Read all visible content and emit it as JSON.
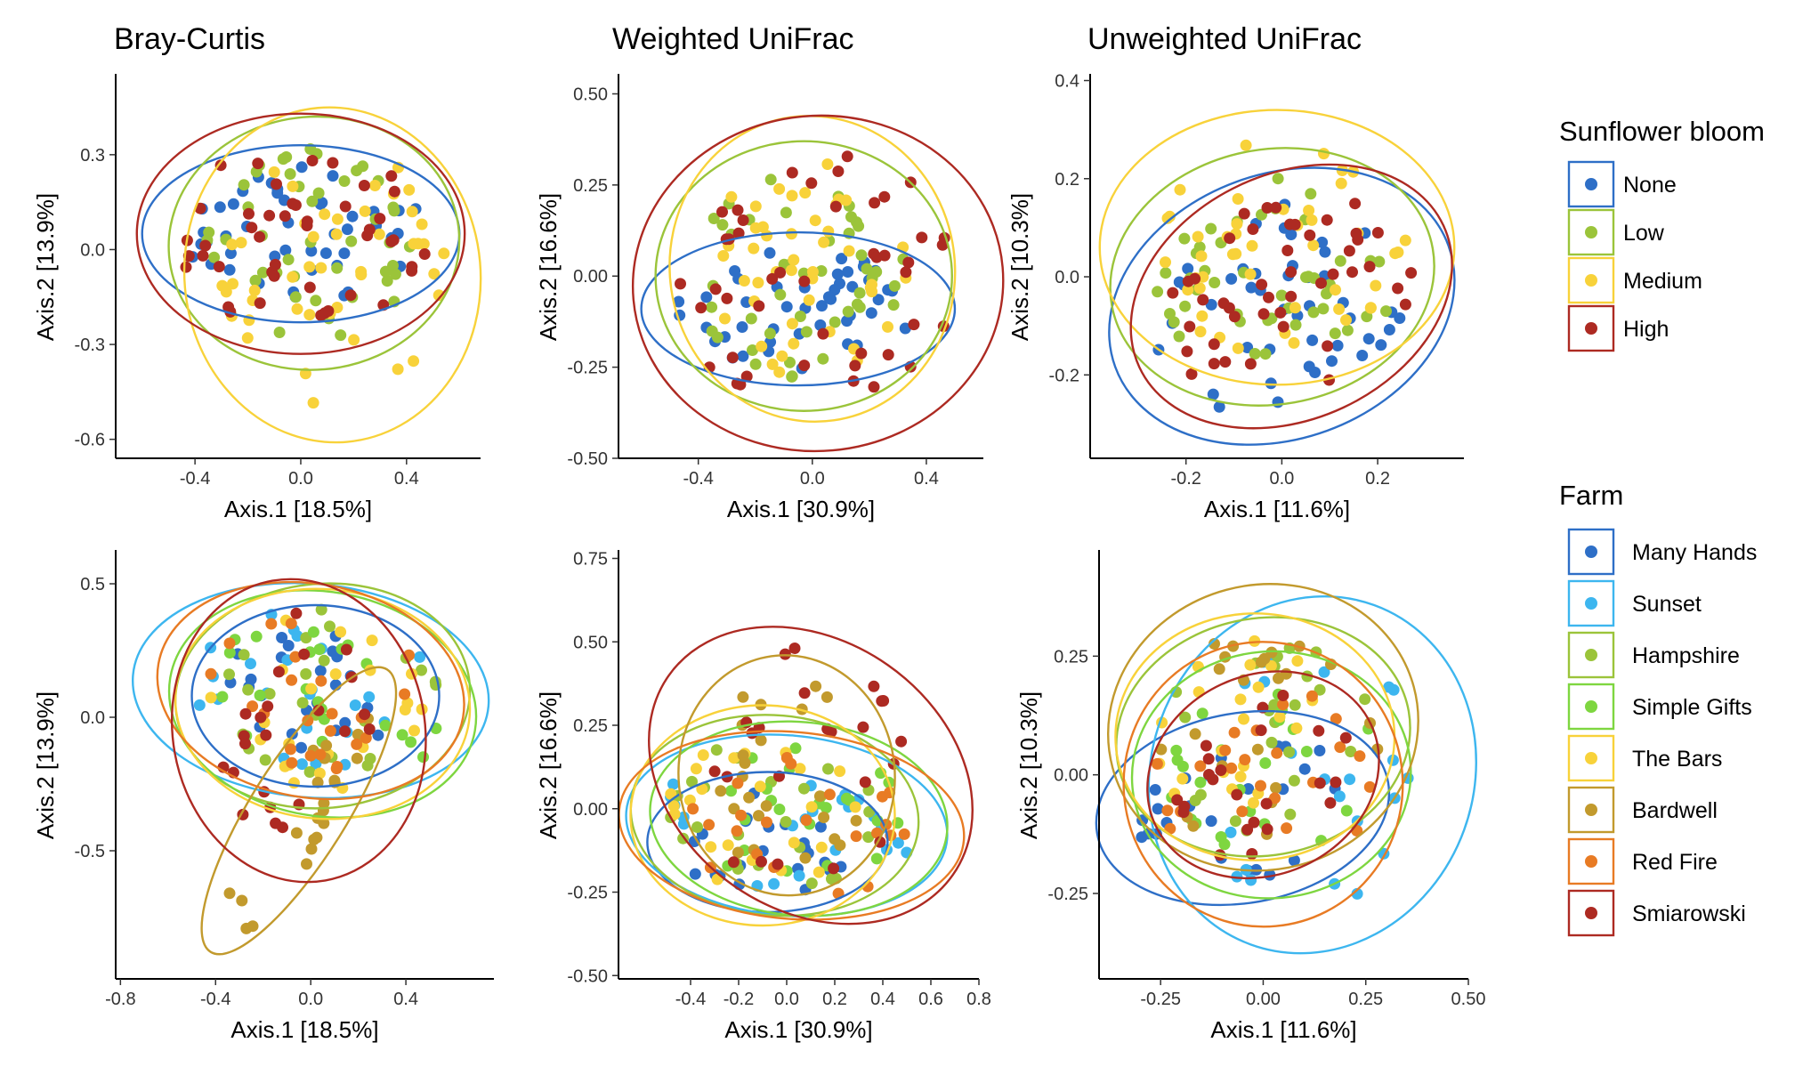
{
  "column_titles": [
    "Bray-Curtis",
    "Weighted UniFrac",
    "Unweighted UniFrac"
  ],
  "colors": {
    "None": "#2e6fc7",
    "Low": "#9bc43a",
    "Medium": "#f8d23a",
    "High": "#ad2a22",
    "Many Hands": "#2e6fc7",
    "Sunset": "#3db6ef",
    "Hampshire": "#9bc43a",
    "Simple Gifts": "#7ed640",
    "The Bars": "#f8d23a",
    "Bardwell": "#c29a2d",
    "Red Fire": "#e87b24",
    "Smiarowski": "#ad2a22"
  },
  "legends": [
    {
      "title": "Sunflower bloom",
      "items": [
        "None",
        "Low",
        "Medium",
        "High"
      ]
    },
    {
      "title": "Farm",
      "items": [
        "Many Hands",
        "Sunset",
        "Hampshire",
        "Simple Gifts",
        "The Bars",
        "Bardwell",
        "Red Fire",
        "Smiarowski"
      ]
    }
  ],
  "chart_data": [
    {
      "type": "scatter",
      "metric": "Bray-Curtis",
      "grouping": "Sunflower bloom",
      "xlabel": "Axis.1   [18.5%]",
      "ylabel": "Axis.2   [13.9%]",
      "xlim": [
        -0.7,
        0.68
      ],
      "ylim": [
        -0.66,
        0.55
      ],
      "xticks": [
        -0.4,
        0.0,
        0.4
      ],
      "xtick_labels": [
        "-0.4",
        "0.0",
        "0.4"
      ],
      "yticks": [
        0.3,
        0.0,
        -0.3,
        -0.6
      ],
      "ytick_labels": [
        "0.3",
        "0.0",
        "-0.3",
        "-0.6"
      ],
      "grid": false,
      "legend": "right",
      "ellipses": [
        {
          "group": "None",
          "cx": 0.0,
          "cy": 0.05,
          "rx": 0.6,
          "ry": 0.28,
          "angle": 0
        },
        {
          "group": "Low",
          "cx": 0.05,
          "cy": 0.02,
          "rx": 0.55,
          "ry": 0.4,
          "angle": 5
        },
        {
          "group": "Medium",
          "cx": 0.12,
          "cy": -0.08,
          "rx": 0.56,
          "ry": 0.53,
          "angle": 5
        },
        {
          "group": "High",
          "cx": 0.0,
          "cy": 0.05,
          "rx": 0.62,
          "ry": 0.38,
          "angle": 0
        }
      ]
    },
    {
      "type": "scatter",
      "metric": "Weighted UniFrac",
      "grouping": "Sunflower bloom",
      "xlabel": "Axis.1   [30.9%]",
      "ylabel": "Axis.2   [16.6%]",
      "xlim": [
        -0.68,
        0.6
      ],
      "ylim": [
        -0.5,
        0.55
      ],
      "xticks": [
        -0.4,
        0.0,
        0.4
      ],
      "xtick_labels": [
        "-0.4",
        "0.0",
        "0.4"
      ],
      "yticks": [
        0.5,
        0.25,
        0.0,
        -0.25,
        -0.5
      ],
      "ytick_labels": [
        "0.50",
        "0.25",
        "0.00",
        "-0.25",
        "-0.50"
      ],
      "grid": false,
      "legend": "right",
      "ellipses": [
        {
          "group": "None",
          "cx": -0.05,
          "cy": -0.09,
          "rx": 0.55,
          "ry": 0.21,
          "angle": 0
        },
        {
          "group": "Low",
          "cx": -0.03,
          "cy": 0.0,
          "rx": 0.52,
          "ry": 0.37,
          "angle": 0
        },
        {
          "group": "Medium",
          "cx": 0.0,
          "cy": 0.02,
          "rx": 0.5,
          "ry": 0.42,
          "angle": 8
        },
        {
          "group": "High",
          "cx": 0.02,
          "cy": -0.02,
          "rx": 0.65,
          "ry": 0.46,
          "angle": 5
        }
      ]
    },
    {
      "type": "scatter",
      "metric": "Unweighted UniFrac",
      "grouping": "Sunflower bloom",
      "xlabel": "Axis.1   [11.6%]",
      "ylabel": "Axis.2   [10.3%]",
      "xlim": [
        -0.4,
        0.38
      ],
      "ylim": [
        -0.37,
        0.41
      ],
      "xticks": [
        -0.2,
        0.0,
        0.2
      ],
      "xtick_labels": [
        "-0.2",
        "0.0",
        "0.2"
      ],
      "yticks": [
        0.4,
        0.2,
        0.0,
        -0.2
      ],
      "ytick_labels": [
        "0.4",
        "0.2",
        "0.0",
        "-0.2"
      ],
      "grid": false,
      "legend": "right",
      "ellipses": [
        {
          "group": "None",
          "cx": 0.0,
          "cy": -0.06,
          "rx": 0.37,
          "ry": 0.27,
          "angle": 20
        },
        {
          "group": "Low",
          "cx": -0.02,
          "cy": 0.0,
          "rx": 0.34,
          "ry": 0.26,
          "angle": 10
        },
        {
          "group": "Medium",
          "cx": -0.01,
          "cy": 0.06,
          "rx": 0.37,
          "ry": 0.28,
          "angle": 0
        },
        {
          "group": "High",
          "cx": 0.02,
          "cy": -0.04,
          "rx": 0.35,
          "ry": 0.25,
          "angle": 25
        }
      ]
    },
    {
      "type": "scatter",
      "metric": "Bray-Curtis",
      "grouping": "Farm",
      "xlabel": "Axis.1   [18.5%]",
      "ylabel": "Axis.2   [13.9%]",
      "xlim": [
        -0.82,
        0.77
      ],
      "ylim": [
        -0.98,
        0.62
      ],
      "xticks": [
        -0.8,
        -0.4,
        0.0,
        0.4
      ],
      "xtick_labels": [
        "-0.8",
        "-0.4",
        "0.0",
        "0.4"
      ],
      "yticks": [
        0.5,
        0.0,
        -0.5
      ],
      "ytick_labels": [
        "0.5",
        "0.0",
        "-0.5"
      ],
      "grid": false,
      "legend": "right",
      "ellipses": [
        {
          "group": "Many Hands",
          "cx": 0.02,
          "cy": 0.08,
          "rx": 0.52,
          "ry": 0.34,
          "angle": 0
        },
        {
          "group": "Sunset",
          "cx": 0.0,
          "cy": 0.1,
          "rx": 0.75,
          "ry": 0.4,
          "angle": -5
        },
        {
          "group": "Hampshire",
          "cx": 0.05,
          "cy": 0.08,
          "rx": 0.62,
          "ry": 0.42,
          "angle": 5
        },
        {
          "group": "Simple Gifts",
          "cx": 0.05,
          "cy": 0.05,
          "rx": 0.65,
          "ry": 0.42,
          "angle": -10
        },
        {
          "group": "The Bars",
          "cx": 0.05,
          "cy": 0.05,
          "rx": 0.62,
          "ry": 0.43,
          "angle": -5
        },
        {
          "group": "Bardwell",
          "cx": -0.05,
          "cy": -0.35,
          "rx": 0.7,
          "ry": 0.18,
          "angle": 58
        },
        {
          "group": "Red Fire",
          "cx": 0.0,
          "cy": 0.1,
          "rx": 0.65,
          "ry": 0.4,
          "angle": -10
        },
        {
          "group": "Smiarowski",
          "cx": -0.05,
          "cy": -0.05,
          "rx": 0.53,
          "ry": 0.57,
          "angle": 10
        }
      ]
    },
    {
      "type": "scatter",
      "metric": "Weighted UniFrac",
      "grouping": "Farm",
      "xlabel": "Axis.1   [30.9%]",
      "ylabel": "Axis.2   [16.6%]",
      "xlim": [
        -0.7,
        0.8
      ],
      "ylim": [
        -0.51,
        0.77
      ],
      "xticks": [
        -0.4,
        -0.2,
        0.0,
        0.2,
        0.4,
        0.6,
        0.8
      ],
      "xtick_labels": [
        "-0.4",
        "-0.2",
        "0.0",
        "0.2",
        "0.4",
        "0.6",
        "0.8"
      ],
      "yticks": [
        0.75,
        0.5,
        0.25,
        0.0,
        -0.25,
        -0.5
      ],
      "ytick_labels": [
        "0.75",
        "0.50",
        "0.25",
        "0.00",
        "-0.25",
        "-0.50"
      ],
      "grid": false,
      "legend": "right",
      "ellipses": [
        {
          "group": "Many Hands",
          "cx": -0.08,
          "cy": -0.1,
          "rx": 0.5,
          "ry": 0.21,
          "angle": 0
        },
        {
          "group": "Sunset",
          "cx": 0.0,
          "cy": -0.05,
          "rx": 0.67,
          "ry": 0.27,
          "angle": -5
        },
        {
          "group": "Hampshire",
          "cx": -0.05,
          "cy": -0.02,
          "rx": 0.6,
          "ry": 0.3,
          "angle": -5
        },
        {
          "group": "Simple Gifts",
          "cx": 0.05,
          "cy": -0.03,
          "rx": 0.62,
          "ry": 0.29,
          "angle": -5
        },
        {
          "group": "The Bars",
          "cx": -0.1,
          "cy": -0.02,
          "rx": 0.55,
          "ry": 0.33,
          "angle": 0
        },
        {
          "group": "Bardwell",
          "cx": 0.0,
          "cy": 0.1,
          "rx": 0.45,
          "ry": 0.36,
          "angle": 5
        },
        {
          "group": "Red Fire",
          "cx": 0.02,
          "cy": -0.05,
          "rx": 0.72,
          "ry": 0.28,
          "angle": -5
        },
        {
          "group": "Smiarowski",
          "cx": 0.1,
          "cy": 0.1,
          "rx": 0.56,
          "ry": 0.52,
          "angle": 55
        }
      ]
    },
    {
      "type": "scatter",
      "metric": "Unweighted UniFrac",
      "grouping": "Farm",
      "xlabel": "Axis.1   [11.6%]",
      "ylabel": "Axis.2   [10.3%]",
      "xlim": [
        -0.4,
        0.5
      ],
      "ylim": [
        -0.43,
        0.47
      ],
      "xticks": [
        -0.25,
        0.0,
        0.25,
        0.5
      ],
      "xtick_labels": [
        "-0.25",
        "0.00",
        "0.25",
        "0.50"
      ],
      "yticks": [
        0.25,
        0.0,
        -0.25
      ],
      "ytick_labels": [
        "0.25",
        "0.00",
        "-0.25"
      ],
      "grid": false,
      "legend": "right",
      "ellipses": [
        {
          "group": "Many Hands",
          "cx": -0.05,
          "cy": -0.07,
          "rx": 0.36,
          "ry": 0.2,
          "angle": 10
        },
        {
          "group": "Sunset",
          "cx": 0.12,
          "cy": 0.0,
          "rx": 0.44,
          "ry": 0.34,
          "angle": 70
        },
        {
          "group": "Hampshire",
          "cx": 0.0,
          "cy": 0.08,
          "rx": 0.36,
          "ry": 0.25,
          "angle": 10
        },
        {
          "group": "Simple Gifts",
          "cx": 0.02,
          "cy": 0.0,
          "rx": 0.34,
          "ry": 0.26,
          "angle": 5
        },
        {
          "group": "The Bars",
          "cx": -0.02,
          "cy": 0.08,
          "rx": 0.34,
          "ry": 0.26,
          "angle": 0
        },
        {
          "group": "Bardwell",
          "cx": 0.0,
          "cy": 0.1,
          "rx": 0.38,
          "ry": 0.3,
          "angle": 15
        },
        {
          "group": "Red Fire",
          "cx": 0.0,
          "cy": -0.02,
          "rx": 0.34,
          "ry": 0.3,
          "angle": 5
        },
        {
          "group": "Smiarowski",
          "cx": 0.0,
          "cy": 0.0,
          "rx": 0.29,
          "ry": 0.21,
          "angle": 25
        }
      ]
    }
  ]
}
